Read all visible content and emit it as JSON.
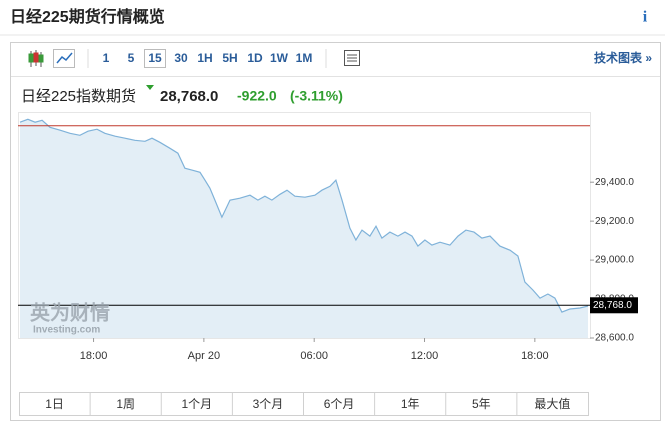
{
  "header": {
    "title": "日经225期货行情概览",
    "info": "i"
  },
  "toolbar": {
    "intervals": [
      "1",
      "5",
      "15",
      "30",
      "1H",
      "5H",
      "1D",
      "1W",
      "1M"
    ],
    "selected": "15",
    "tech_chart": "技术图表 »"
  },
  "quote": {
    "name": "日经225指数期货",
    "price": "28,768.0",
    "change": "-922.0",
    "change_pct": "(-3.11%)"
  },
  "ranges": [
    "1日",
    "1周",
    "1个月",
    "3个月",
    "6个月",
    "1年",
    "5年",
    "最大值"
  ],
  "watermark": {
    "brand": "英为财情",
    "site": "Investing.com"
  },
  "chart_data": {
    "type": "area",
    "color": "#7fb2d9",
    "fill": "#e3eef6",
    "xlim": [
      0,
      31
    ],
    "xticks": [
      {
        "value": 4,
        "label": "18:00"
      },
      {
        "value": 10,
        "label": "Apr 20"
      },
      {
        "value": 16,
        "label": "06:00"
      },
      {
        "value": 22,
        "label": "12:00"
      },
      {
        "value": 28,
        "label": "18:00"
      }
    ],
    "ylim": [
      28600,
      29745
    ],
    "yticks": [
      {
        "value": 28600,
        "label": "28,600.0"
      },
      {
        "value": 28800,
        "label": "28,800.0"
      },
      {
        "value": 29000,
        "label": "29,000.0"
      },
      {
        "value": 29200,
        "label": "29,200.0"
      },
      {
        "value": 29400,
        "label": "29,400.0"
      }
    ],
    "reference_line": {
      "value": 29690,
      "color": "#c0392b"
    },
    "current": {
      "value": 28768,
      "label": "28,768.0",
      "color": "#000000"
    },
    "x": [
      0,
      0.43,
      0.82,
      1.2,
      1.63,
      2.18,
      2.72,
      3.26,
      3.7,
      4.19,
      4.62,
      5.17,
      5.71,
      6.25,
      6.8,
      7.18,
      7.61,
      8.16,
      8.59,
      8.97,
      9.35,
      9.79,
      10.06,
      10.33,
      10.6,
      10.98,
      11.42,
      11.96,
      12.51,
      12.94,
      13.32,
      13.7,
      14.14,
      14.52,
      14.95,
      15.5,
      16.04,
      16.42,
      16.86,
      17.18,
      17.51,
      17.94,
      18.27,
      18.6,
      19.03,
      19.36,
      19.68,
      20.12,
      20.55,
      20.94,
      21.32,
      21.64,
      22.02,
      22.4,
      22.84,
      23.38,
      23.82,
      24.25,
      24.69,
      25.12,
      25.56,
      26.1,
      26.65,
      27.08,
      27.46,
      27.9,
      28.28,
      28.71,
      29.09,
      29.47,
      29.91,
      30.45,
      30.89
    ],
    "values": [
      29708,
      29723,
      29708,
      29718,
      29682,
      29667,
      29651,
      29641,
      29662,
      29672,
      29651,
      29636,
      29626,
      29615,
      29610,
      29626,
      29605,
      29574,
      29549,
      29472,
      29462,
      29451,
      29410,
      29369,
      29308,
      29220,
      29308,
      29318,
      29333,
      29308,
      29328,
      29308,
      29338,
      29359,
      29328,
      29323,
      29333,
      29359,
      29379,
      29410,
      29308,
      29164,
      29103,
      29154,
      29123,
      29174,
      29113,
      29144,
      29123,
      29144,
      29123,
      29072,
      29103,
      29077,
      29092,
      29077,
      29123,
      29154,
      29144,
      29113,
      29123,
      29072,
      29051,
      29021,
      28887,
      28846,
      28805,
      28826,
      28805,
      28733,
      28749,
      28754,
      28764
    ]
  }
}
